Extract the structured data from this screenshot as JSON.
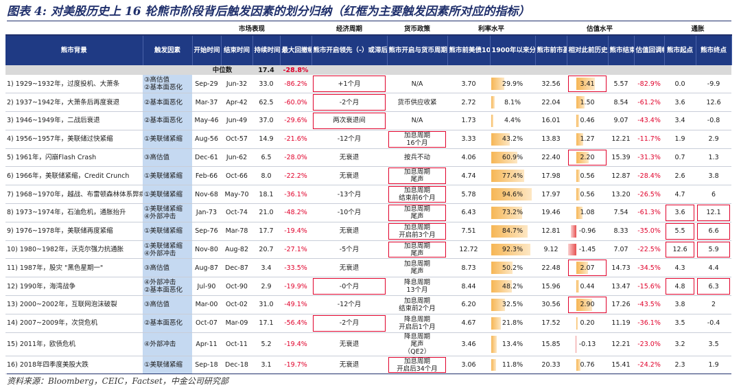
{
  "title": "图表 4: 对美股历史上 16 轮熊市阶段背后触发因素的划分归纳（红框为主要触发因素所对应的指标）",
  "groups": {
    "market": "市场表现",
    "econ": "经济周期",
    "monetary": "货币政策",
    "rate": "利率水平",
    "valuation": "估值水平",
    "inflation": "通胀"
  },
  "headers": [
    "熊市背景",
    "触发因素",
    "开始时间",
    "结束时间",
    "持续时间(月)",
    "最大回撤幅度",
    "熊市开启领先（-）或滞后（+）经济衰退期",
    "熊市开启与货币周期的关系",
    "熊市前美债10年利率",
    "1900年以来分位数",
    "熊市前市盈率",
    "相对此前历史水平z-score",
    "熊市结束",
    "估值回调幅度",
    "熊市起点",
    "熊市终点"
  ],
  "median": {
    "label": "中位数",
    "duration": "17.4",
    "drawdown": "-28.8%"
  },
  "rows": [
    {
      "bg": "1) 1929~1932年，过度投机、大萧条",
      "trig": "③高估值\n②基本面恶化",
      "start": "Sep-29",
      "end": "Jun-32",
      "dur": "33.0",
      "dd": "-86.2%",
      "econ": "+1个月",
      "econ_box": true,
      "mon": "N/A",
      "mon_box": false,
      "rate": "3.70",
      "pct": "29.9%",
      "pct_v": 29.9,
      "pe": "32.56",
      "z": "3.41",
      "z_v": 3.41,
      "z_box": true,
      "pe_end": "5.57",
      "fall": "-82.9%",
      "inf_s": "0.0",
      "inf_e": "-9.9",
      "inf_box": false
    },
    {
      "bg": "2) 1937~1942年，大萧条后再度衰退",
      "trig": "②基本面恶化",
      "start": "Mar-37",
      "end": "Apr-42",
      "dur": "62.5",
      "dd": "-60.0%",
      "econ": "-2个月",
      "econ_box": true,
      "mon": "货币供应收紧",
      "mon_box": false,
      "rate": "2.72",
      "pct": "8.1%",
      "pct_v": 8.1,
      "pe": "22.04",
      "z": "1.50",
      "z_v": 1.5,
      "z_box": false,
      "pe_end": "8.54",
      "fall": "-61.2%",
      "inf_s": "3.6",
      "inf_e": "12.6",
      "inf_box": false
    },
    {
      "bg": "3) 1946~1949年，二战后衰退",
      "trig": "②基本面恶化",
      "start": "May-46",
      "end": "Jun-49",
      "dur": "37.0",
      "dd": "-29.6%",
      "econ": "两次衰退间",
      "econ_box": true,
      "mon": "N/A",
      "mon_box": false,
      "rate": "1.73",
      "pct": "4.4%",
      "pct_v": 4.4,
      "pe": "16.01",
      "z": "0.46",
      "z_v": 0.46,
      "z_box": false,
      "pe_end": "9.07",
      "fall": "-43.4%",
      "inf_s": "3.4",
      "inf_e": "-0.8",
      "inf_box": false
    },
    {
      "bg": "4) 1956~1957年，美联储过快紧缩",
      "trig": "①美联储紧缩",
      "start": "Aug-56",
      "end": "Oct-57",
      "dur": "14.9",
      "dd": "-21.6%",
      "econ": "-12个月",
      "econ_box": false,
      "mon": "加息周期\n16个月",
      "mon_box": true,
      "rate": "3.33",
      "pct": "43.2%",
      "pct_v": 43.2,
      "pe": "13.83",
      "z": "1.27",
      "z_v": 1.27,
      "z_box": false,
      "pe_end": "12.21",
      "fall": "-11.7%",
      "inf_s": "1.9",
      "inf_e": "2.9",
      "inf_box": false
    },
    {
      "bg": "5) 1961年，闪崩Flash Crash",
      "trig": "③高估值",
      "start": "Dec-61",
      "end": "Jun-62",
      "dur": "6.5",
      "dd": "-28.0%",
      "econ": "无衰退",
      "econ_box": false,
      "mon": "按兵不动",
      "mon_box": false,
      "rate": "4.06",
      "pct": "60.9%",
      "pct_v": 60.9,
      "pe": "22.40",
      "z": "2.20",
      "z_v": 2.2,
      "z_box": true,
      "pe_end": "15.39",
      "fall": "-31.3%",
      "inf_s": "0.7",
      "inf_e": "1.3",
      "inf_box": false
    },
    {
      "bg": "6) 1966年，美联储紧缩，Credit Crunch",
      "trig": "①美联储紧缩",
      "start": "Feb-66",
      "end": "Oct-66",
      "dur": "8.0",
      "dd": "-22.2%",
      "econ": "无衰退",
      "econ_box": false,
      "mon": "加息周期\n尾声",
      "mon_box": true,
      "rate": "4.74",
      "pct": "77.4%",
      "pct_v": 77.4,
      "pe": "17.98",
      "z": "0.56",
      "z_v": 0.56,
      "z_box": false,
      "pe_end": "12.87",
      "fall": "-28.4%",
      "inf_s": "2.6",
      "inf_e": "3.8",
      "inf_box": false
    },
    {
      "bg": "7) 1968~1970年，越战、布雷顿森林体系弊病显现、通胀抬升",
      "trig": "①美联储紧缩",
      "start": "Nov-68",
      "end": "May-70",
      "dur": "18.1",
      "dd": "-36.1%",
      "econ": "-13个月",
      "econ_box": false,
      "mon": "加息周期\n结束前6个月",
      "mon_box": true,
      "rate": "5.78",
      "pct": "94.6%",
      "pct_v": 94.6,
      "pe": "17.97",
      "z": "0.56",
      "z_v": 0.56,
      "z_box": false,
      "pe_end": "13.20",
      "fall": "-26.5%",
      "inf_s": "4.7",
      "inf_e": "6",
      "inf_box": false
    },
    {
      "bg": "8) 1973~1974年，石油危机，通胀抬升",
      "trig": "①美联储紧缩\n④外部冲击",
      "start": "Jan-73",
      "end": "Oct-74",
      "dur": "21.0",
      "dd": "-48.2%",
      "econ": "-10个月",
      "econ_box": false,
      "mon": "加息周期\n尾声",
      "mon_box": true,
      "rate": "6.43",
      "pct": "73.2%",
      "pct_v": 73.2,
      "pe": "19.46",
      "z": "1.08",
      "z_v": 1.08,
      "z_box": false,
      "pe_end": "7.54",
      "fall": "-61.3%",
      "inf_s": "3.6",
      "inf_e": "12.1",
      "inf_box": true
    },
    {
      "bg": "9) 1976~1978年，美联储再度紧缩",
      "trig": "①美联储紧缩",
      "start": "Sep-76",
      "end": "Mar-78",
      "dur": "17.7",
      "dd": "-19.4%",
      "econ": "无衰退",
      "econ_box": false,
      "mon": "加息周期\n开启前3个月",
      "mon_box": true,
      "rate": "7.51",
      "pct": "84.7%",
      "pct_v": 84.7,
      "pe": "12.81",
      "z": "-0.96",
      "z_v": -0.96,
      "z_box": false,
      "pe_end": "8.33",
      "fall": "-35.0%",
      "inf_s": "5.5",
      "inf_e": "6.6",
      "inf_box": true
    },
    {
      "bg": "10) 1980~1982年，沃克尔强力抗通胀",
      "trig": "①美联储紧缩\n④外部冲击",
      "start": "Nov-80",
      "end": "Aug-82",
      "dur": "20.7",
      "dd": "-27.1%",
      "econ": "-5个月",
      "econ_box": false,
      "mon": "加息周期\n尾声",
      "mon_box": true,
      "rate": "12.72",
      "pct": "92.3%",
      "pct_v": 92.3,
      "pe": "9.12",
      "z": "-1.45",
      "z_v": -1.45,
      "z_box": false,
      "pe_end": "7.07",
      "fall": "-22.5%",
      "inf_s": "12.6",
      "inf_e": "5.9",
      "inf_box": true
    },
    {
      "bg": "11) 1987年，股灾 \"黑色星期一\"",
      "trig": "③高估值",
      "start": "Aug-87",
      "end": "Dec-87",
      "dur": "3.4",
      "dd": "-33.5%",
      "econ": "无衰退",
      "econ_box": false,
      "mon": "加息周期\n尾声",
      "mon_box": false,
      "rate": "8.73",
      "pct": "50.2%",
      "pct_v": 50.2,
      "pe": "22.48",
      "z": "2.07",
      "z_v": 2.07,
      "z_box": true,
      "pe_end": "14.73",
      "fall": "-34.5%",
      "inf_s": "4.3",
      "inf_e": "4.4",
      "inf_box": false
    },
    {
      "bg": "12) 1990年，海湾战争",
      "trig": "④外部冲击\n②基本面恶化",
      "start": "Jul-90",
      "end": "Oct-90",
      "dur": "2.9",
      "dd": "-19.9%",
      "econ": "-0个月",
      "econ_box": true,
      "mon": "降息周期\n13个月",
      "mon_box": false,
      "rate": "8.44",
      "pct": "48.2%",
      "pct_v": 48.2,
      "pe": "15.96",
      "z": "0.44",
      "z_v": 0.44,
      "z_box": false,
      "pe_end": "13.47",
      "fall": "-15.6%",
      "inf_s": "4.8",
      "inf_e": "6.3",
      "inf_box": true
    },
    {
      "bg": "13) 2000~2002年，互联网泡沫破裂",
      "trig": "③高估值",
      "start": "Mar-00",
      "end": "Oct-02",
      "dur": "31.0",
      "dd": "-49.1%",
      "econ": "-12个月",
      "econ_box": false,
      "mon": "加息周期\n结束前2个月",
      "mon_box": false,
      "rate": "6.20",
      "pct": "32.5%",
      "pct_v": 32.5,
      "pe": "30.56",
      "z": "2.90",
      "z_v": 2.9,
      "z_box": true,
      "pe_end": "17.26",
      "fall": "-43.5%",
      "inf_s": "3.8",
      "inf_e": "2",
      "inf_box": false
    },
    {
      "bg": "14) 2007~2009年，次贷危机",
      "trig": "②基本面恶化",
      "start": "Oct-07",
      "end": "Mar-09",
      "dur": "17.1",
      "dd": "-56.4%",
      "econ": "-2个月",
      "econ_box": true,
      "mon": "降息周期\n开启后1个月",
      "mon_box": false,
      "rate": "4.67",
      "pct": "21.8%",
      "pct_v": 21.8,
      "pe": "17.52",
      "z": "0.20",
      "z_v": 0.2,
      "z_box": false,
      "pe_end": "11.19",
      "fall": "-36.1%",
      "inf_s": "3.5",
      "inf_e": "-0.4",
      "inf_box": false
    },
    {
      "bg": "15) 2011年，欧债危机",
      "trig": "④外部冲击",
      "start": "Apr-11",
      "end": "Oct-11",
      "dur": "5.2",
      "dd": "-19.4%",
      "econ": "无衰退",
      "econ_box": false,
      "mon": "降息周期\n尾声\n（QE2）",
      "mon_box": false,
      "rate": "3.46",
      "pct": "13.4%",
      "pct_v": 13.4,
      "pe": "15.85",
      "z": "-0.13",
      "z_v": -0.13,
      "z_box": false,
      "pe_end": "12.21",
      "fall": "-23.0%",
      "inf_s": "3.2",
      "inf_e": "3.5",
      "inf_box": false
    },
    {
      "bg": "16) 2018年四季度美股大跌",
      "trig": "①美联储紧缩",
      "start": "Sep-18",
      "end": "Dec-18",
      "dur": "3.1",
      "dd": "-19.7%",
      "econ": "无衰退",
      "econ_box": false,
      "mon": "加息周期\n开启后34个月",
      "mon_box": true,
      "rate": "3.06",
      "pct": "11.8%",
      "pct_v": 11.8,
      "pe": "20.33",
      "z": "0.76",
      "z_v": 0.76,
      "z_box": false,
      "pe_end": "15.41",
      "fall": "-24.2%",
      "inf_s": "2.3",
      "inf_e": "1.9",
      "inf_box": false
    }
  ],
  "source": "资料来源：Bloomberg，CEIC，Factset，中金公司研究部",
  "colors": {
    "header_bg": "#1f3a84",
    "trigger_bg": "#c5d9f1",
    "highlight": "#e0002a",
    "bar": "#f6b655"
  }
}
